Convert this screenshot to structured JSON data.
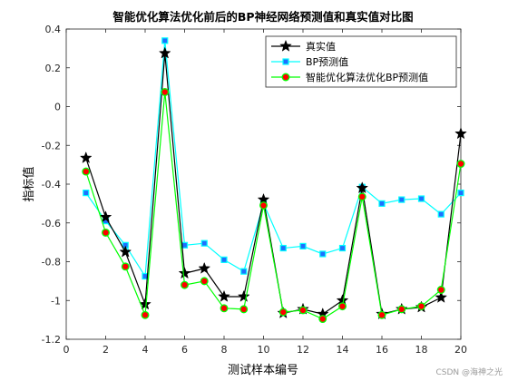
{
  "watermark": "CSDN @海神之光",
  "chart_data": {
    "type": "line",
    "title": "智能优化算法优化前后的BP神经网络预测值和真实值对比图",
    "xlabel": "测试样本编号",
    "ylabel": "指标值",
    "xlim": [
      0,
      20
    ],
    "ylim": [
      -1.2,
      0.4
    ],
    "xticks": [
      "0",
      "2",
      "4",
      "6",
      "8",
      "10",
      "12",
      "14",
      "16",
      "18",
      "20"
    ],
    "yticks": [
      "-1.2",
      "-1",
      "-0.8",
      "-0.6",
      "-0.4",
      "-0.2",
      "0",
      "0.2",
      "0.4"
    ],
    "grid": false,
    "legend_position": "top-right",
    "x": [
      1,
      2,
      3,
      4,
      5,
      6,
      7,
      8,
      9,
      10,
      11,
      12,
      13,
      14,
      15,
      16,
      17,
      18,
      19,
      20
    ],
    "series": [
      {
        "name": "真实值",
        "color": "#000000",
        "marker": "star",
        "values": [
          -0.265,
          -0.57,
          -0.75,
          -1.02,
          0.275,
          -0.86,
          -0.835,
          -0.98,
          -0.98,
          -0.48,
          -1.065,
          -1.045,
          -1.07,
          -1.0,
          -0.42,
          -1.07,
          -1.045,
          -1.035,
          -0.985,
          -0.14
        ]
      },
      {
        "name": "BP预测值",
        "color": "#00ffff",
        "marker": "square",
        "values": [
          -0.445,
          -0.59,
          -0.715,
          -0.875,
          0.34,
          -0.715,
          -0.705,
          -0.79,
          -0.85,
          -0.5,
          -0.73,
          -0.72,
          -0.76,
          -0.73,
          -0.415,
          -0.5,
          -0.48,
          -0.475,
          -0.555,
          -0.445
        ]
      },
      {
        "name": "智能优化算法优化BP预测值",
        "color": "#00ff00",
        "marker": "circle",
        "marker_fill": "#ff0000",
        "values": [
          -0.335,
          -0.65,
          -0.825,
          -1.075,
          0.075,
          -0.92,
          -0.9,
          -1.04,
          -1.045,
          -0.51,
          -1.06,
          -1.05,
          -1.095,
          -1.03,
          -0.465,
          -1.075,
          -1.045,
          -1.03,
          -0.945,
          -0.295
        ]
      }
    ]
  }
}
